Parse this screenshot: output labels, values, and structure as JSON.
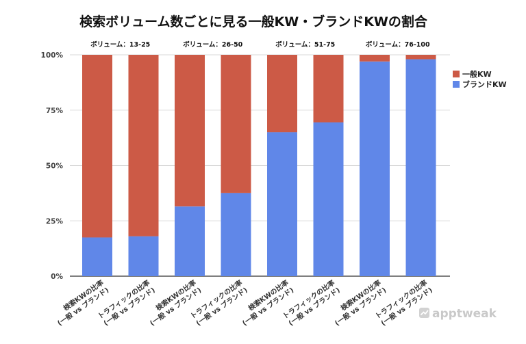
{
  "chart_data": {
    "type": "bar",
    "stacked": true,
    "title": "検索ボリューム数ごとに見る一般KW・ブランドKWの割合",
    "groups": [
      "ボリューム：13-25",
      "ボリューム：26-50",
      "ボリューム：51-75",
      "ボリューム：76-100"
    ],
    "categories": [
      [
        "検索KWの比率",
        "(一般 vs ブランド)"
      ],
      [
        "トラフィックの比率",
        "(一般 vs ブランド)"
      ],
      [
        "検索KWの比率",
        "(一般 vs ブランド)"
      ],
      [
        "トラフィックの比率",
        "(一般 vs ブランド)"
      ],
      [
        "検索KWの比率",
        "(一般 vs ブランド)"
      ],
      [
        "トラフィックの比率",
        "(一般 vs ブランド)"
      ],
      [
        "検索KWの比率",
        "(一般 vs ブランド)"
      ],
      [
        "トラフィックの比率",
        "(一般 vs ブランド)"
      ]
    ],
    "series": [
      {
        "name": "ブランドKW",
        "color": "#6087e8",
        "values": [
          17.5,
          18,
          31.5,
          37.5,
          65,
          69.5,
          97,
          98
        ]
      },
      {
        "name": "一般KW",
        "color": "#cc5a46",
        "values": [
          82.5,
          82,
          68.5,
          62.5,
          35,
          30.5,
          3,
          2
        ]
      }
    ],
    "legend_order": [
      "一般KW",
      "ブランドKW"
    ],
    "y_ticks": [
      "0%",
      "25%",
      "50%",
      "75%",
      "100%"
    ],
    "y_tick_values": [
      0,
      25,
      50,
      75,
      100
    ],
    "ylim": [
      0,
      100
    ],
    "grid": true,
    "legend_position": "right"
  },
  "watermark": "apptweak"
}
